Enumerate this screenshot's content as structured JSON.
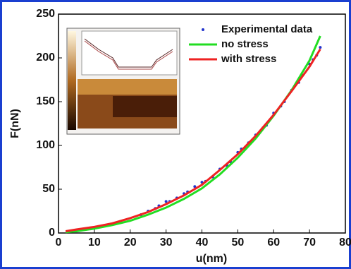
{
  "chart_data": {
    "type": "line",
    "xlabel": "u(nm)",
    "ylabel": "F(nN)",
    "xlim": [
      0,
      80
    ],
    "ylim": [
      0,
      250
    ],
    "xticks": [
      0,
      10,
      20,
      30,
      40,
      50,
      60,
      70,
      80
    ],
    "yticks": [
      0,
      50,
      100,
      150,
      200,
      250
    ],
    "legend": "upper right",
    "series": [
      {
        "name": "Experimental data",
        "type": "scatter",
        "color": "#2233cc",
        "x": [
          23,
          25,
          27,
          28,
          30,
          31,
          33,
          35,
          36,
          38,
          40,
          41,
          43,
          45,
          47,
          48,
          50,
          51,
          52,
          53,
          55,
          57,
          58,
          60,
          62,
          63,
          65,
          67,
          68,
          70,
          71,
          72,
          73
        ],
        "values": [
          21,
          25,
          28,
          31,
          36,
          36,
          40,
          45,
          47,
          53,
          58,
          59,
          64,
          73,
          77,
          81,
          92,
          96,
          97,
          103,
          112,
          120,
          123,
          137,
          145,
          150,
          163,
          172,
          180,
          193,
          198,
          203,
          212
        ]
      },
      {
        "name": "no stress",
        "type": "line",
        "color": "#22dd22",
        "x": [
          2,
          5,
          10,
          15,
          20,
          25,
          30,
          35,
          40,
          45,
          50,
          55,
          60,
          65,
          70,
          73
        ],
        "values": [
          1,
          2,
          5,
          9,
          14,
          21,
          29,
          39,
          51,
          67,
          86,
          108,
          134,
          163,
          197,
          225
        ]
      },
      {
        "name": "with stress",
        "type": "line",
        "color": "#ee2222",
        "x": [
          2,
          5,
          10,
          15,
          20,
          25,
          30,
          35,
          40,
          45,
          50,
          55,
          60,
          65,
          70,
          73
        ],
        "values": [
          2,
          4,
          7,
          11,
          17,
          24,
          33,
          43,
          55,
          72,
          90,
          111,
          135,
          162,
          190,
          210
        ]
      }
    ]
  }
}
